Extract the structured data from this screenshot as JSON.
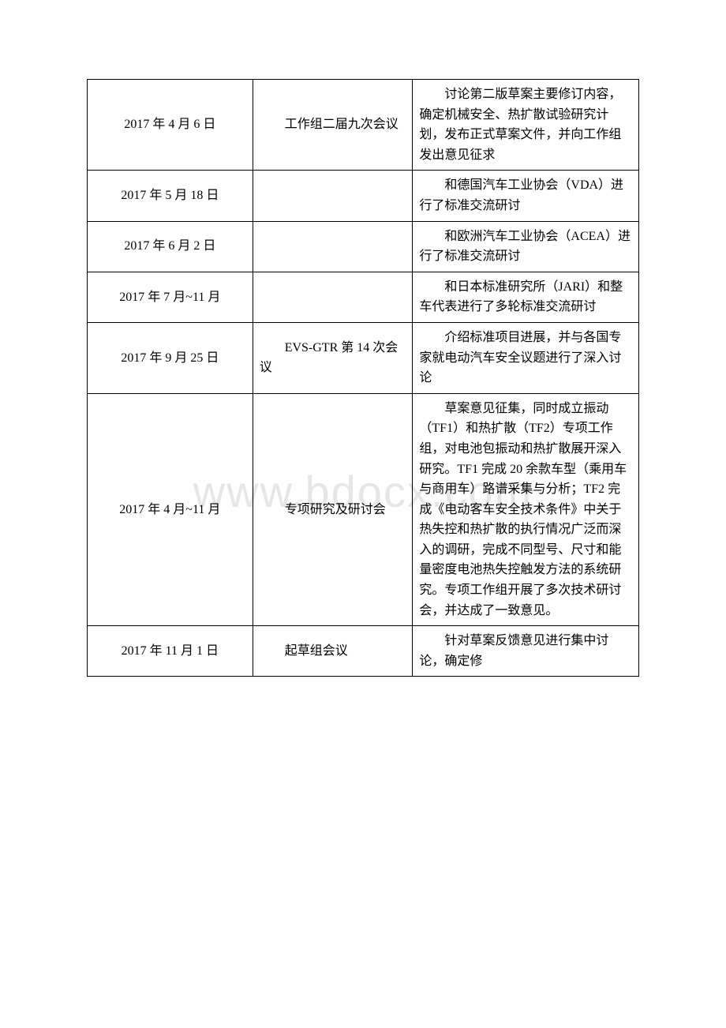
{
  "watermark": {
    "text": "www.bdocx.com",
    "color": "#e6e6e6",
    "fontsize": 56
  },
  "table": {
    "type": "table",
    "border_color": "#000000",
    "text_color": "#000000",
    "background_color": "#ffffff",
    "fontsize": 16,
    "columns": [
      {
        "key": "date",
        "width_pct": 30,
        "align": "center"
      },
      {
        "key": "event",
        "width_pct": 29,
        "align": "left"
      },
      {
        "key": "description",
        "width_pct": 41,
        "align": "left"
      }
    ],
    "rows": [
      {
        "date": "2017 年 4 月 6 日",
        "event": "工作组二届九次会议",
        "description": "讨论第二版草案主要修订内容，确定机械安全、热扩散试验研究计划，发布正式草案文件，并向工作组发出意见征求"
      },
      {
        "date": "2017 年 5 月 18 日",
        "event": "",
        "description": "和德国汽车工业协会（VDA）进行了标准交流研讨"
      },
      {
        "date": "2017 年 6 月 2 日",
        "event": "",
        "description": "和欧洲汽车工业协会（ACEA）进行了标准交流研讨"
      },
      {
        "date": "2017 年 7 月~11 月",
        "event": "",
        "description": "和日本标准研究所（JARI）和整车代表进行了多轮标准交流研讨"
      },
      {
        "date": "2017 年 9 月 25 日",
        "event": "EVS-GTR 第 14 次会议",
        "description": "介绍标准项目进展，并与各国专家就电动汽车安全议题进行了深入讨论"
      },
      {
        "date": "2017 年 4 月~11 月",
        "event": "专项研究及研讨会",
        "description": "草案意见征集，同时成立振动（TF1）和热扩散（TF2）专项工作组，对电池包振动和热扩散展开深入研究。TF1 完成 20 余款车型（乘用车与商用车）路谱采集与分析；TF2 完成《电动客车安全技术条件》中关于热失控和热扩散的执行情况广泛而深入的调研，完成不同型号、尺寸和能量密度电池热失控触发方法的系统研究。专项工作组开展了多次技术研讨会，并达成了一致意见。"
      },
      {
        "date": "2017 年 11 月 1 日",
        "event": "起草组会议",
        "description": "针对草案反馈意见进行集中讨论，确定修"
      }
    ]
  }
}
